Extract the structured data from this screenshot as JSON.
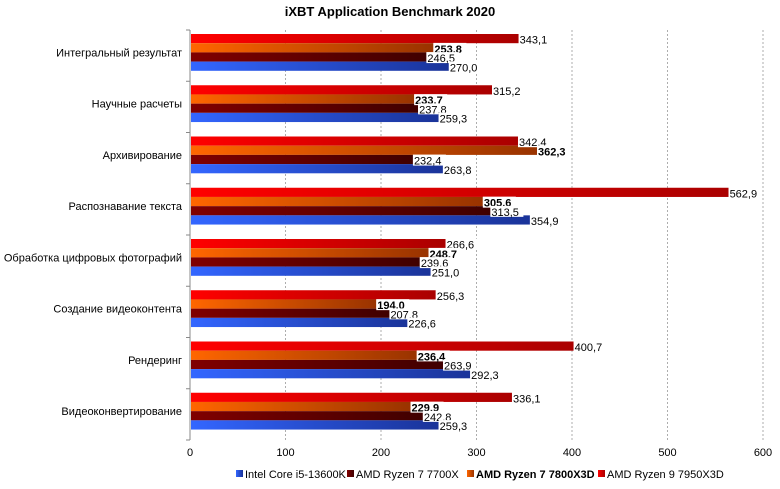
{
  "chart_data": {
    "type": "bar",
    "orientation": "horizontal",
    "title": "iXBT Application Benchmark 2020",
    "xlabel": "",
    "ylabel": "",
    "xlim": [
      0,
      600
    ],
    "xticks": [
      "0",
      "100",
      "200",
      "300",
      "400",
      "500",
      "600"
    ],
    "grid": true,
    "legend_position": "bottom",
    "categories": [
      "Интегральный результат",
      "Научные расчеты",
      "Архивирование",
      "Распознавание текста",
      "Обработка цифровых фотографий",
      "Создание видеоконтента",
      "Рендеринг",
      "Видеоконвертирование"
    ],
    "series": [
      {
        "name": "Intel Core i5-13600K",
        "color": "#3366ff",
        "dark": "#1a3399",
        "bold": false,
        "values": [
          270.0,
          259.3,
          263.8,
          354.9,
          251.0,
          226.6,
          292.3,
          259.3
        ],
        "labels": [
          "270,0",
          "259,3",
          "263,8",
          "354,9",
          "251,0",
          "226,6",
          "292,3",
          "259,3"
        ]
      },
      {
        "name": "AMD Ryzen 7 7700X",
        "color": "#800000",
        "dark": "#400000",
        "bold": false,
        "values": [
          246.5,
          237.8,
          232.4,
          313.5,
          239.6,
          207.8,
          263.9,
          242.8
        ],
        "labels": [
          "246,5",
          "237,8",
          "232,4",
          "313,5",
          "239,6",
          "207,8",
          "263,9",
          "242,8"
        ]
      },
      {
        "name": "AMD Ryzen 7 7800X3D",
        "color": "#ff6600",
        "dark": "#993300",
        "bold": true,
        "values": [
          253.8,
          233.7,
          362.3,
          305.6,
          248.7,
          194.0,
          236.4,
          229.9
        ],
        "labels": [
          "253,8",
          "233,7",
          "362,3",
          "305,6",
          "248,7",
          "194,0",
          "236,4",
          "229,9"
        ]
      },
      {
        "name": "AMD Ryzen 9 7950X3D",
        "color": "#ff0000",
        "dark": "#aa0000",
        "bold": false,
        "values": [
          343.1,
          315.2,
          342.4,
          562.9,
          266.6,
          256.3,
          400.7,
          336.1
        ],
        "labels": [
          "343,1",
          "315,2",
          "342,4",
          "562,9",
          "266,6",
          "256,3",
          "400,7",
          "336,1"
        ]
      }
    ]
  }
}
